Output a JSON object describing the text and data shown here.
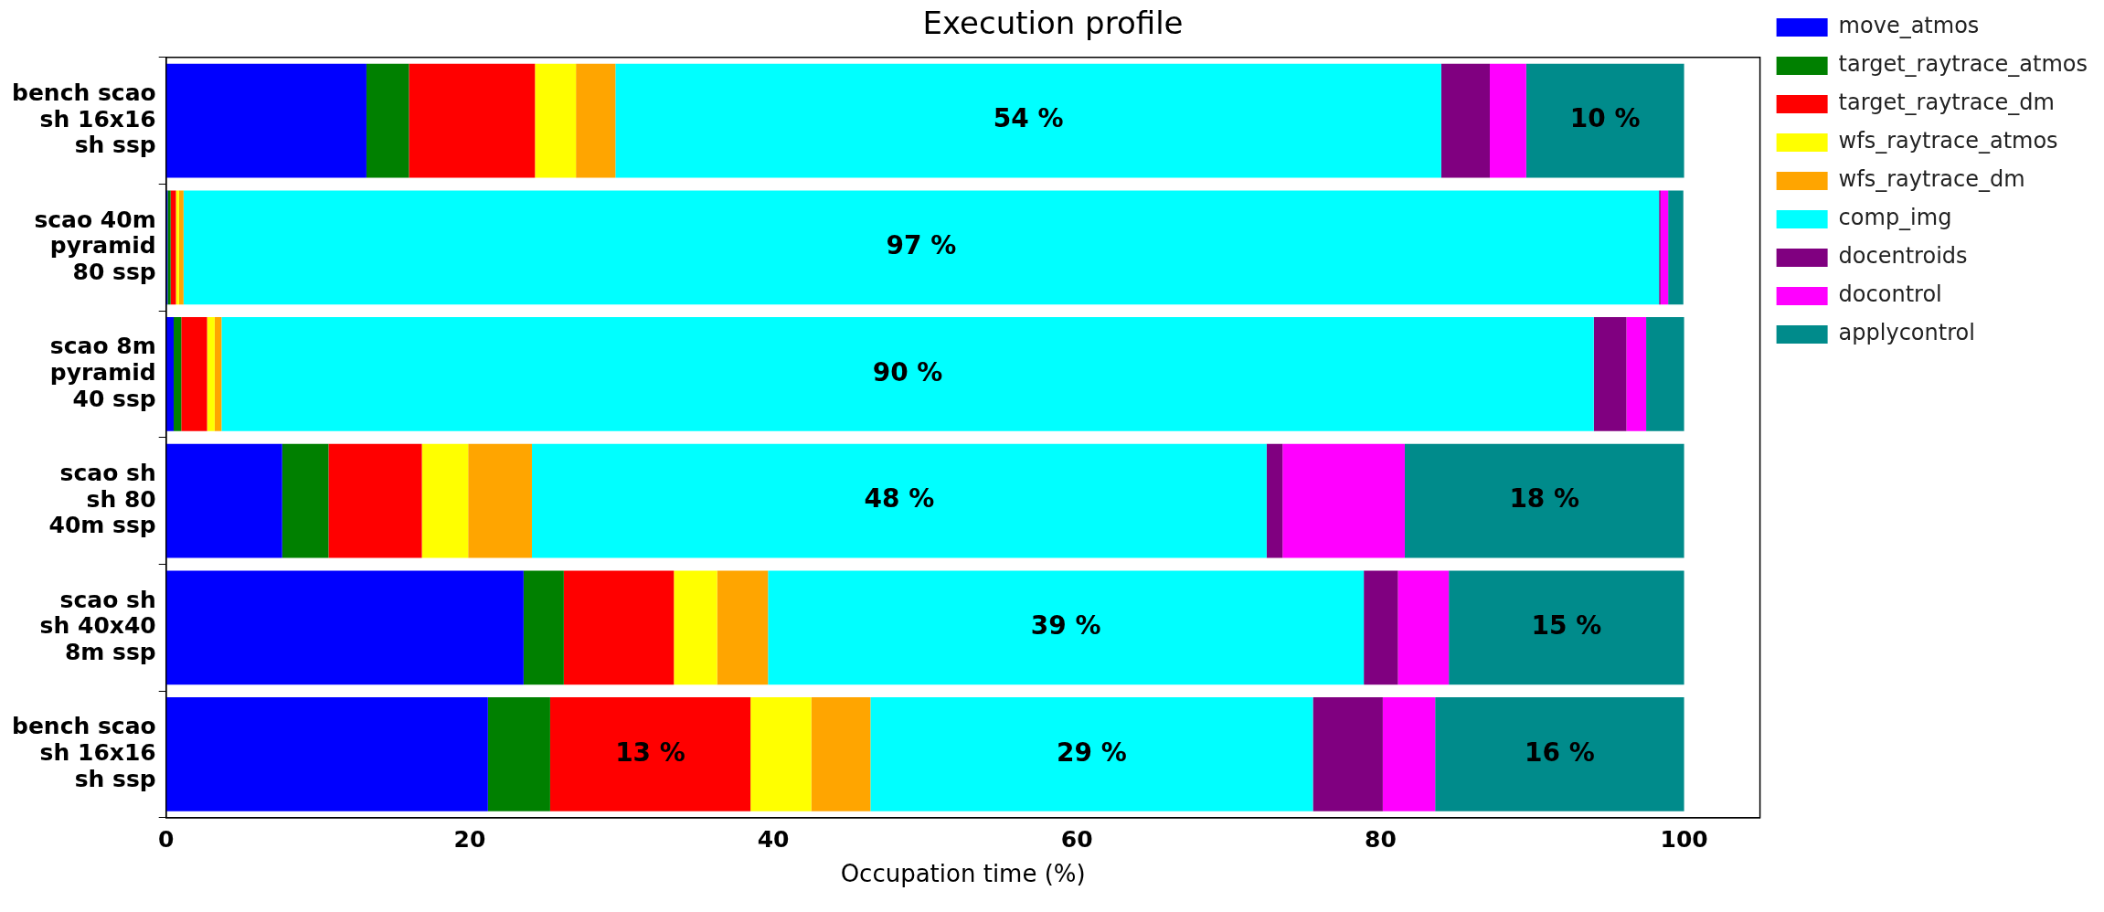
{
  "chart_data": {
    "type": "bar",
    "orientation": "horizontal",
    "stacked": true,
    "title": "Execution profile",
    "xlabel": "Occupation time (%)",
    "categories": [
      "bench scao\nsh 16x16\nsh ssp",
      "scao 40m\npyramid\n80 ssp",
      "scao 8m\npyramid\n40 ssp",
      "scao sh\nsh 80\n40m ssp",
      "scao sh\nsh 40x40\n8m ssp",
      "bench scao\nsh 16x16\nsh ssp"
    ],
    "xlim": [
      0,
      105
    ],
    "xticks": [
      0,
      20,
      40,
      60,
      80,
      100
    ],
    "grid": false,
    "legend": "top right",
    "series": [
      {
        "name": "move_atmos",
        "color": "#0000ff",
        "values": [
          13.2,
          0.1,
          0.5,
          7.65,
          23.55,
          21.2
        ]
      },
      {
        "name": "target_raytrace_atmos",
        "color": "#008000",
        "values": [
          2.8,
          0.2,
          0.5,
          3.05,
          2.65,
          4.1
        ]
      },
      {
        "name": "target_raytrace_dm",
        "color": "#ff0000",
        "values": [
          8.3,
          0.35,
          1.7,
          6.15,
          7.25,
          13.2
        ],
        "value_labels": [
          null,
          null,
          null,
          null,
          null,
          "13 %"
        ]
      },
      {
        "name": "wfs_raytrace_atmos",
        "color": "#ffff00",
        "values": [
          2.7,
          0.2,
          0.5,
          3.05,
          2.85,
          4.0
        ]
      },
      {
        "name": "wfs_raytrace_dm",
        "color": "#ffa500",
        "values": [
          2.6,
          0.3,
          0.45,
          4.2,
          3.35,
          3.9
        ]
      },
      {
        "name": "comp_img",
        "color": "#00ffff",
        "values": [
          54.4,
          97.2,
          90.4,
          48.4,
          39.25,
          29.15
        ],
        "value_labels": [
          "54 %",
          "97 %",
          "90 %",
          "48 %",
          "39 %",
          "29 %"
        ]
      },
      {
        "name": "docentroids",
        "color": "#800080",
        "values": [
          3.2,
          0.1,
          2.15,
          1.05,
          2.25,
          4.6
        ]
      },
      {
        "name": "docontrol",
        "color": "#ff00ff",
        "values": [
          2.4,
          0.5,
          1.3,
          8.05,
          3.35,
          3.45
        ]
      },
      {
        "name": "applycontrol",
        "color": "#008b8b",
        "values": [
          10.4,
          1.0,
          2.5,
          18.4,
          15.5,
          16.4
        ],
        "value_labels": [
          "10 %",
          null,
          null,
          "18 %",
          "15 %",
          "16 %"
        ]
      }
    ]
  }
}
